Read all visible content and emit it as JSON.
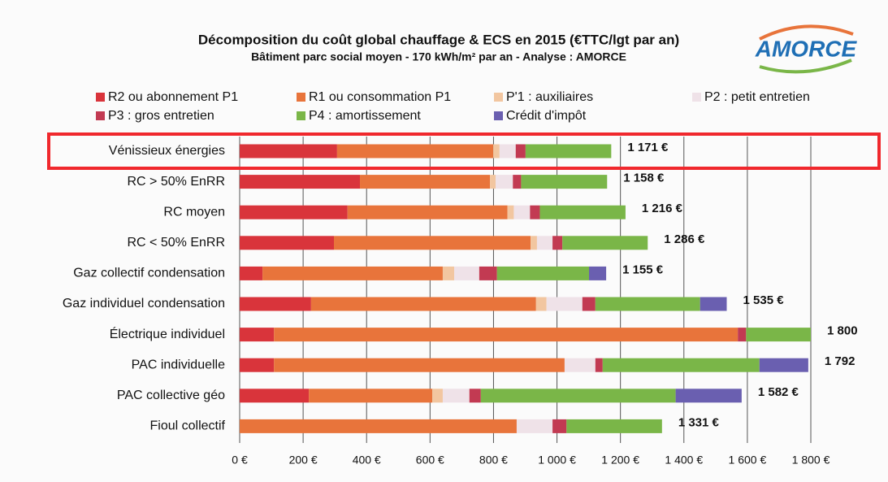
{
  "chart_data": {
    "type": "stacked-barh",
    "title": "Décomposition du coût global chauffage & ECS en 2015 (€TTC/lgt par an)",
    "subtitle": "Bâtiment parc social moyen - 170 kWh/m² par an - Analyse : AMORCE",
    "logo": "AMORCE",
    "categories": [
      "Vénissieux énergies",
      "RC > 50% EnRR",
      "RC moyen",
      "RC < 50% EnRR",
      "Gaz collectif condensation",
      "Gaz individuel condensation",
      "Électrique individuel",
      "PAC individuelle",
      "PAC collective géo",
      "Fioul collectif"
    ],
    "series": [
      {
        "name": "R2 ou abonnement P1",
        "color": "#d9343b",
        "values": [
          307,
          379,
          340,
          297,
          72,
          225,
          108,
          108,
          218,
          0
        ]
      },
      {
        "name": "R1 ou consommation P1",
        "color": "#e8743b",
        "values": [
          492,
          410,
          504,
          620,
          568,
          709,
          1462,
          916,
          389,
          873
        ]
      },
      {
        "name": "P'1 : auxiliaires",
        "color": "#f2c6a0",
        "values": [
          20,
          18,
          20,
          20,
          36,
          33,
          0,
          0,
          33,
          0
        ]
      },
      {
        "name": "P2 : petit entretien",
        "color": "#efe2e8",
        "values": [
          51,
          54,
          51,
          49,
          79,
          113,
          0,
          97,
          84,
          113
        ]
      },
      {
        "name": "P3 : gros entretien",
        "color": "#c23a52",
        "values": [
          31,
          26,
          31,
          31,
          56,
          41,
          26,
          23,
          36,
          44
        ]
      },
      {
        "name": "P4 : amortissement",
        "color": "#7ab648",
        "values": [
          270,
          271,
          270,
          269,
          290,
          330,
          204,
          494,
          614,
          301
        ]
      },
      {
        "name": "Crédit d'impôt",
        "color": "#6a5fb0",
        "values": [
          0,
          0,
          0,
          0,
          54,
          84,
          0,
          154,
          208,
          0
        ]
      }
    ],
    "totals": {
      "values": [
        1171,
        1158,
        1216,
        1286,
        1155,
        1535,
        1800,
        1792,
        1582,
        1331
      ],
      "value_labels": [
        "1 171 €",
        "1 158 €",
        "1 216 €",
        "1 286 €",
        "1 155 €",
        "1 535 €",
        "1 800",
        "1 792",
        "1 582 €",
        "1 331 €"
      ]
    },
    "xlim": [
      0,
      1800
    ],
    "xticks": [
      {
        "value": 0,
        "label": "0 €"
      },
      {
        "value": 200,
        "label": "200 €"
      },
      {
        "value": 400,
        "label": "400 €"
      },
      {
        "value": 600,
        "label": "600 €"
      },
      {
        "value": 800,
        "label": "800 €"
      },
      {
        "value": 1000,
        "label": "1 000 €"
      },
      {
        "value": 1200,
        "label": "1 200 €"
      },
      {
        "value": 1400,
        "label": "1 400 €"
      },
      {
        "value": 1600,
        "label": "1 600 €"
      },
      {
        "value": 1800,
        "label": "1 800 €"
      }
    ],
    "grid": true
  }
}
